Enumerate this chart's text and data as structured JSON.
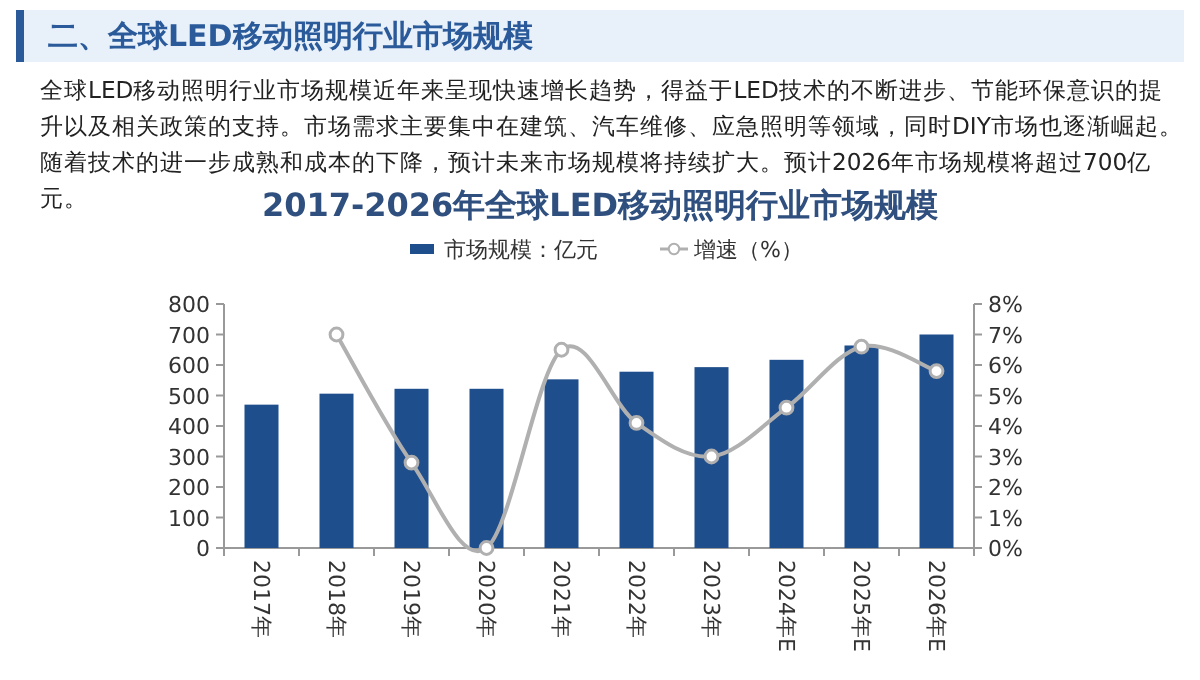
{
  "chart_data": {
    "type": "bar",
    "title": "2017-2026年全球LED移动照明行业市场规模",
    "annotations": [
      "二、全球LED移动照明行业市场规模",
      "全球LED移动照明行业市场规模近年来呈现快速增长趋势，得益于LED技术的不断进步、节能环保意识的提升以及相关政策的支持。市场需求主要集中在建筑、汽车维修、应急照明等领域，同时DIY市场也逐渐崛起。随着技术的进一步成熟和成本的下降，预计未来市场规模将持续扩大。预计2026年市场规模将超过700亿元。"
    ],
    "categories": [
      "2017年",
      "2018年",
      "2019年",
      "2020年",
      "2021年",
      "2022年",
      "2023年",
      "2024年E",
      "2025年E",
      "2026年E"
    ],
    "series": [
      {
        "name": "市场规模：亿元",
        "color": "#1f4e8c",
        "values": [
          470,
          506,
          522,
          522,
          553,
          578,
          593,
          617,
          664,
          700
        ]
      },
      {
        "name": "增速（%）",
        "type": "line",
        "axis": "y2",
        "color": "#b0b0b0",
        "marker": "circle",
        "values": [
          null,
          7.0,
          2.8,
          0.0,
          6.5,
          4.1,
          3.0,
          4.6,
          6.6,
          5.8
        ]
      }
    ],
    "ylim": [
      0,
      800
    ],
    "yticks": [
      0,
      100,
      200,
      300,
      400,
      500,
      600,
      700,
      800
    ],
    "y2lim": [
      0,
      8
    ],
    "y2ticks": [
      {
        "value": 0,
        "label": "0%"
      },
      {
        "value": 1,
        "label": "1%"
      },
      {
        "value": 2,
        "label": "2%"
      },
      {
        "value": 3,
        "label": "3%"
      },
      {
        "value": 4,
        "label": "4%"
      },
      {
        "value": 5,
        "label": "5%"
      },
      {
        "value": 6,
        "label": "6%"
      },
      {
        "value": 7,
        "label": "7%"
      },
      {
        "value": 8,
        "label": "8%"
      }
    ],
    "legend": "top",
    "grid": false
  }
}
